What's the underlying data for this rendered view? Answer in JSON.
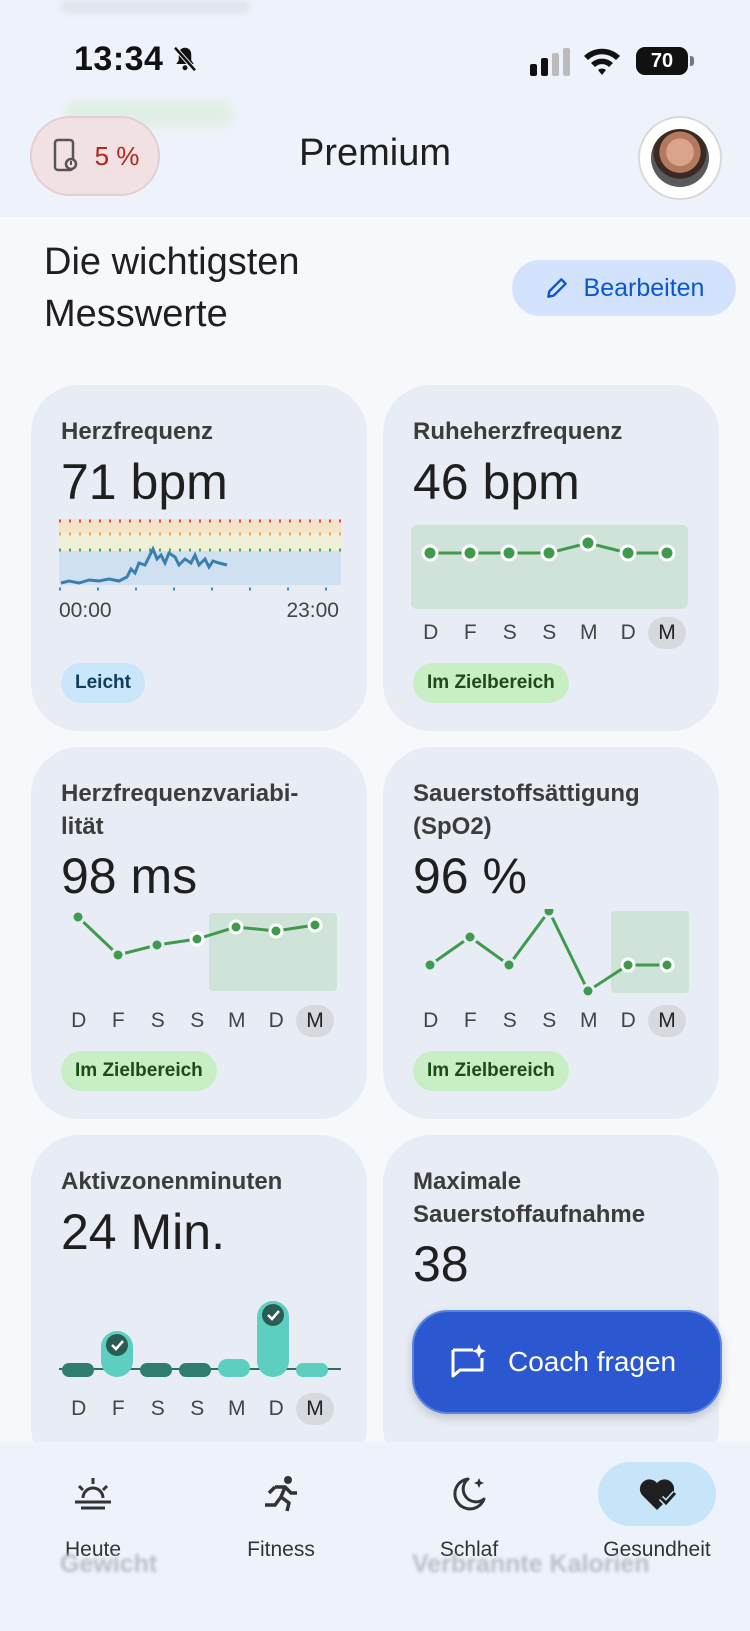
{
  "status_bar": {
    "time": "13:34",
    "battery": "70"
  },
  "header": {
    "device_battery": "5 %",
    "title": "Premium"
  },
  "section": {
    "title_line1": "Die wichtigsten",
    "title_line2": "Messwerte",
    "edit_label": "Bearbeiten"
  },
  "days": [
    "D",
    "F",
    "S",
    "S",
    "M",
    "D",
    "M"
  ],
  "cards": {
    "heart_rate": {
      "title": "Herzfrequenz",
      "value": "71 bpm",
      "time_start": "00:00",
      "time_end": "23:00",
      "badge": "Leicht"
    },
    "resting_hr": {
      "title": "Ruheherzfrequenz",
      "value": "46 bpm",
      "badge": "Im Zielbereich"
    },
    "hrv": {
      "title_line1": "Herzfrequenzvariabi-",
      "title_line2": "lität",
      "value": "98 ms",
      "badge": "Im Zielbereich"
    },
    "spo2": {
      "title_line1": "Sauerstoffsättigung",
      "title_line2": "(SpO2)",
      "value": "96 %",
      "badge": "Im Zielbereich"
    },
    "azm": {
      "title": "Aktivzonenminuten",
      "value": "24 Min."
    },
    "vo2": {
      "title_line1": "Maximale",
      "title_line2": "Sauerstoffaufnahme",
      "value": "38"
    }
  },
  "fab": {
    "label": "Coach fragen"
  },
  "nav": {
    "items": [
      {
        "label": "Heute",
        "icon": "sun-horizon-icon"
      },
      {
        "label": "Fitness",
        "icon": "running-icon"
      },
      {
        "label": "Schlaf",
        "icon": "moon-icon"
      },
      {
        "label": "Gesundheit",
        "icon": "heart-check-icon"
      }
    ],
    "active": "Gesundheit"
  },
  "ghost_labels": {
    "left": "Gewicht",
    "right": "Verbrannte Kalorien"
  },
  "colors": {
    "accent_blue": "#0b57d0",
    "chart_green": "#3f9a4e",
    "azm_teal": "#5ccfc0",
    "fab": "#2b58d1"
  }
}
